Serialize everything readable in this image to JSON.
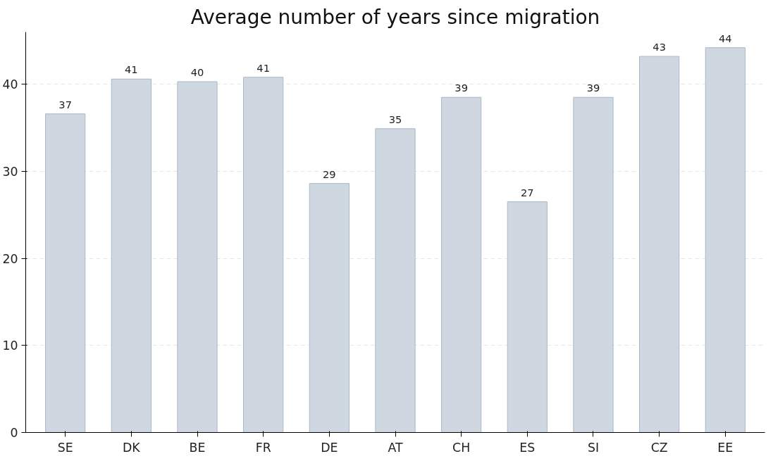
{
  "chart_data": {
    "type": "bar",
    "title": "Average number of years since migration",
    "categories": [
      "SE",
      "DK",
      "BE",
      "FR",
      "DE",
      "AT",
      "CH",
      "ES",
      "SI",
      "CZ",
      "EE"
    ],
    "values": [
      36.6,
      40.6,
      40.3,
      40.8,
      28.6,
      34.9,
      38.5,
      26.5,
      38.5,
      43.2,
      44.2
    ],
    "value_labels": [
      "37",
      "41",
      "40",
      "41",
      "29",
      "35",
      "39",
      "27",
      "39",
      "43",
      "44"
    ],
    "color": "#cfd8e1",
    "ylim": [
      0,
      46
    ],
    "yticks": [
      0,
      10,
      20,
      30,
      40
    ],
    "grid": "y"
  }
}
